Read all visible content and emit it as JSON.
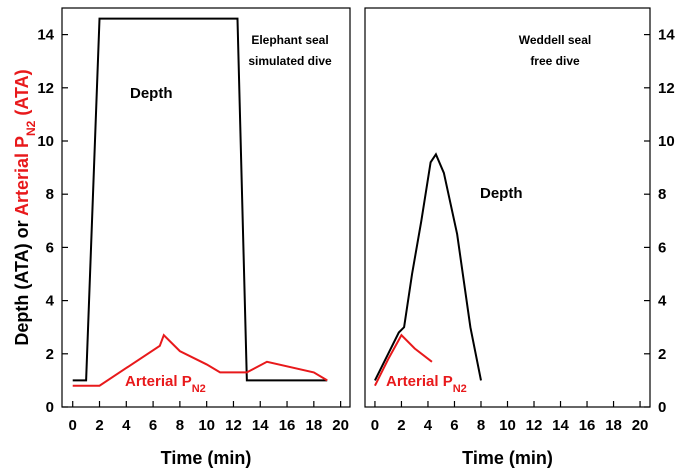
{
  "chart_data": [
    {
      "type": "line",
      "xlabel": "Time (min)",
      "ylabel": [
        {
          "text": "Depth (ATA) or ",
          "color": "#000000"
        },
        {
          "text": "Arterial P",
          "color": "#e8191b"
        },
        {
          "text": "N2",
          "color": "#e8191b",
          "subscript": true
        },
        {
          "text": " (ATA)",
          "color": "#e8191b"
        }
      ],
      "annotations": [
        "Elephant seal",
        "simulated dive"
      ],
      "xlim": [
        -0.8,
        20.7
      ],
      "xticks": [
        0,
        2,
        4,
        6,
        8,
        10,
        12,
        14,
        16,
        18,
        20
      ],
      "ylim": [
        0,
        15
      ],
      "yticks": [
        0,
        2,
        4,
        6,
        8,
        10,
        12,
        14
      ],
      "axis_side": "left",
      "series": [
        {
          "name": "Depth",
          "color": "#000000",
          "x": [
            0,
            1,
            2,
            12.3,
            13,
            19
          ],
          "values": [
            1,
            1,
            14.6,
            14.6,
            1,
            1
          ]
        },
        {
          "name": "Arterial P",
          "name_subscript": "N2",
          "color": "#e8191b",
          "x": [
            0,
            2,
            6.5,
            6.8,
            8,
            10,
            11,
            13,
            14.5,
            18,
            19
          ],
          "values": [
            0.8,
            0.8,
            2.3,
            2.7,
            2.1,
            1.6,
            1.3,
            1.3,
            1.7,
            1.3,
            1.0
          ]
        }
      ]
    },
    {
      "type": "line",
      "xlabel": "Time (min)",
      "annotations": [
        "Weddell seal",
        "free dive"
      ],
      "xlim": [
        -0.75,
        20.75
      ],
      "xticks": [
        0,
        2,
        4,
        6,
        8,
        10,
        12,
        14,
        16,
        18,
        20
      ],
      "ylim": [
        0,
        15
      ],
      "yticks": [
        0,
        2,
        4,
        6,
        8,
        10,
        12,
        14
      ],
      "axis_side": "right",
      "series": [
        {
          "name": "Depth",
          "color": "#000000",
          "x": [
            0,
            1,
            1.8,
            2.2,
            2.8,
            3.5,
            4.2,
            4.6,
            5.2,
            6.2,
            7.2,
            8
          ],
          "values": [
            1,
            2,
            2.8,
            3,
            5,
            7,
            9.2,
            9.5,
            8.8,
            6.5,
            3,
            1
          ]
        },
        {
          "name": "Arterial P",
          "name_subscript": "N2",
          "color": "#e8191b",
          "x": [
            0,
            1,
            2,
            3,
            4.3
          ],
          "values": [
            0.8,
            1.8,
            2.7,
            2.2,
            1.7
          ]
        }
      ]
    }
  ]
}
